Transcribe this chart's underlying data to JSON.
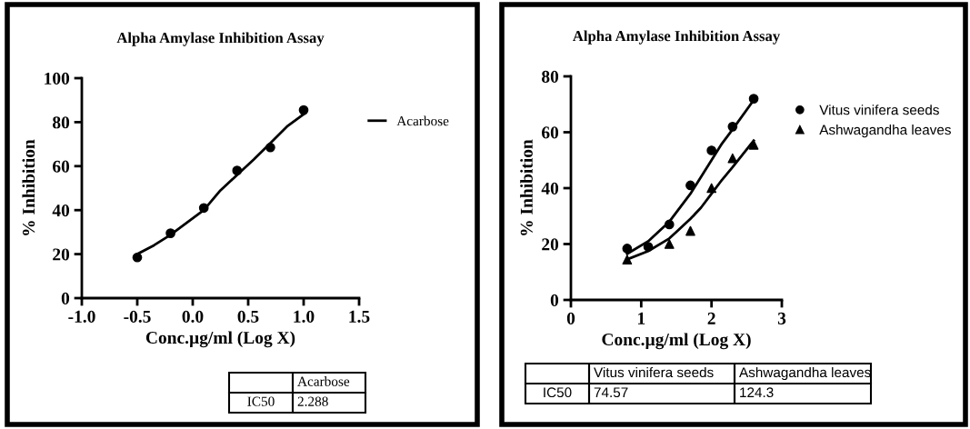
{
  "chart_data": [
    {
      "type": "scatter",
      "title": "Alpha Amylase Inhibition Assay",
      "xlabel": "Conc.µg/ml (Log X)",
      "ylabel": "% Inhibition",
      "xlim": [
        -1.0,
        1.5
      ],
      "ylim": [
        0,
        100
      ],
      "xticks": [
        {
          "value": -1.0,
          "label": "-1.0"
        },
        {
          "value": -0.5,
          "label": "-0.5"
        },
        {
          "value": 0.0,
          "label": "0.0"
        },
        {
          "value": 0.5,
          "label": "0.5"
        },
        {
          "value": 1.0,
          "label": "1.0"
        },
        {
          "value": 1.5,
          "label": "1.5"
        }
      ],
      "yticks": [
        0,
        20,
        40,
        60,
        80,
        100
      ],
      "grid": false,
      "legend": "right",
      "series": [
        {
          "type": "scatter",
          "color": "#000000",
          "marker": "circle",
          "x": [
            -0.5,
            -0.2,
            0.1,
            0.4,
            0.7,
            1.0
          ],
          "values": [
            18.5,
            29.5,
            41,
            58,
            68.5,
            85.5
          ]
        },
        {
          "type": "line",
          "name": "Acarbose",
          "color": "#000000",
          "marker": "none",
          "line_style": "solid",
          "x": [
            -0.5,
            -0.35,
            -0.2,
            0.1,
            0.25,
            0.4,
            0.55,
            0.7,
            0.85,
            1.0
          ],
          "values": [
            20,
            24,
            28.8,
            40,
            49,
            56,
            63,
            70.5,
            78,
            83.6
          ]
        }
      ],
      "annotations": [
        "Acarbose",
        "IC50",
        "2.288"
      ]
    },
    {
      "type": "scatter",
      "title": "Alpha Amylase Inhibition Assay",
      "xlabel": "Conc.µg/ml (Log X)",
      "ylabel": "% Inhibition",
      "xlim": [
        0,
        3
      ],
      "ylim": [
        0,
        80
      ],
      "xticks": [
        0,
        1,
        2,
        3
      ],
      "yticks": [
        0,
        20,
        40,
        60,
        80
      ],
      "grid": false,
      "legend": "right",
      "series": [
        {
          "type": "scatter",
          "name": "Vitus vinifera seeds",
          "color": "#000000",
          "marker": "circle",
          "x": [
            0.8,
            1.1,
            1.4,
            1.7,
            2.0,
            2.3,
            2.6
          ],
          "values": [
            18.4,
            19,
            27,
            41,
            53.5,
            62,
            72
          ]
        },
        {
          "type": "scatter",
          "name": "Ashwagandha leaves",
          "color": "#000000",
          "marker": "triangle",
          "x": [
            0.8,
            1.1,
            1.4,
            1.7,
            2.0,
            2.3,
            2.6
          ],
          "values": [
            14.4,
            null,
            20,
            24.7,
            40,
            50.7,
            55.5
          ]
        },
        {
          "type": "line",
          "color": "#000000",
          "marker": "none",
          "line_style": "solid",
          "x": [
            0.8,
            1.1,
            1.4,
            1.7,
            1.85,
            2.0,
            2.15,
            2.3,
            2.6
          ],
          "values": [
            16.5,
            21,
            28,
            38,
            44,
            50,
            56,
            61,
            71.5
          ]
        },
        {
          "type": "line",
          "color": "#000000",
          "marker": "none",
          "line_style": "solid",
          "x": [
            0.8,
            1.1,
            1.4,
            1.7,
            1.85,
            2.0,
            2.15,
            2.3,
            2.6
          ],
          "values": [
            14.5,
            17.5,
            22,
            29,
            33,
            38,
            43,
            47.5,
            57
          ]
        }
      ],
      "annotations": [
        "Vitus vinifera seeds",
        "Ashwagandha leaves",
        "IC50",
        "74.57",
        "124.3"
      ]
    }
  ]
}
